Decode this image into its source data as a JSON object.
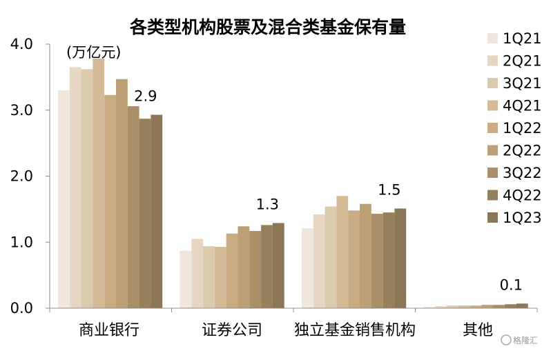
{
  "chart_data": {
    "type": "bar",
    "title": "各类型机构股票及混合类基金保有量",
    "unit_label": "(万亿元)",
    "ylim": [
      0,
      4
    ],
    "yticks": [
      "0.0",
      "1.0",
      "2.0",
      "3.0",
      "4.0"
    ],
    "ytick_values": [
      0,
      1,
      2,
      3,
      4
    ],
    "categories": [
      "商业银行",
      "证券公司",
      "独立基金销售机构",
      "其他"
    ],
    "series": [
      {
        "name": "1Q21",
        "color": "#f0e6dc",
        "values": [
          3.3,
          0.87,
          1.21,
          0.02
        ]
      },
      {
        "name": "2Q21",
        "color": "#e6d6c2",
        "values": [
          3.65,
          1.05,
          1.42,
          0.03
        ]
      },
      {
        "name": "3Q21",
        "color": "#dccaae",
        "values": [
          3.62,
          0.94,
          1.54,
          0.04
        ]
      },
      {
        "name": "4Q21",
        "color": "#d3bb98",
        "values": [
          3.78,
          0.93,
          1.7,
          0.04
        ]
      },
      {
        "name": "1Q22",
        "color": "#c9ac84",
        "values": [
          3.23,
          1.13,
          1.48,
          0.04
        ]
      },
      {
        "name": "2Q22",
        "color": "#bc9f75",
        "values": [
          3.47,
          1.24,
          1.58,
          0.05
        ]
      },
      {
        "name": "3Q22",
        "color": "#a99068",
        "values": [
          3.06,
          1.17,
          1.43,
          0.05
        ]
      },
      {
        "name": "4Q22",
        "color": "#94805c",
        "values": [
          2.87,
          1.26,
          1.45,
          0.06
        ]
      },
      {
        "name": "1Q23",
        "color": "#8b7655",
        "values": [
          2.93,
          1.29,
          1.51,
          0.07
        ]
      }
    ],
    "annotations": [
      "2.9",
      "1.3",
      "1.5",
      "0.1"
    ],
    "legend_position": "right",
    "grid": false
  },
  "watermark": "格隆汇"
}
